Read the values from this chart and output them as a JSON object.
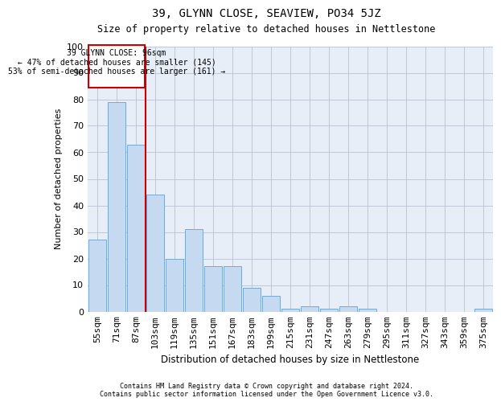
{
  "title1": "39, GLYNN CLOSE, SEAVIEW, PO34 5JZ",
  "title2": "Size of property relative to detached houses in Nettlestone",
  "xlabel": "Distribution of detached houses by size in Nettlestone",
  "ylabel": "Number of detached properties",
  "categories": [
    "55sqm",
    "71sqm",
    "87sqm",
    "103sqm",
    "119sqm",
    "135sqm",
    "151sqm",
    "167sqm",
    "183sqm",
    "199sqm",
    "215sqm",
    "231sqm",
    "247sqm",
    "263sqm",
    "279sqm",
    "295sqm",
    "311sqm",
    "327sqm",
    "343sqm",
    "359sqm",
    "375sqm"
  ],
  "values": [
    27,
    79,
    63,
    44,
    20,
    31,
    17,
    17,
    9,
    6,
    1,
    2,
    1,
    2,
    1,
    0,
    0,
    0,
    0,
    0,
    1
  ],
  "bar_color": "#c5d9f1",
  "bar_edge_color": "#7ba7d0",
  "ylim": [
    0,
    100
  ],
  "yticks": [
    0,
    10,
    20,
    30,
    40,
    50,
    60,
    70,
    80,
    90,
    100
  ],
  "annotation_text_line1": "39 GLYNN CLOSE: 96sqm",
  "annotation_text_line2": "← 47% of detached houses are smaller (145)",
  "annotation_text_line3": "53% of semi-detached houses are larger (161) →",
  "annotation_box_color": "#ffffff",
  "annotation_box_edge": "#cc0000",
  "red_line_color": "#cc0000",
  "red_line_x": 2.5,
  "footer1": "Contains HM Land Registry data © Crown copyright and database right 2024.",
  "footer2": "Contains public sector information licensed under the Open Government Licence v3.0.",
  "grid_color": "#c0c8d8",
  "background_color": "#e8eef8"
}
